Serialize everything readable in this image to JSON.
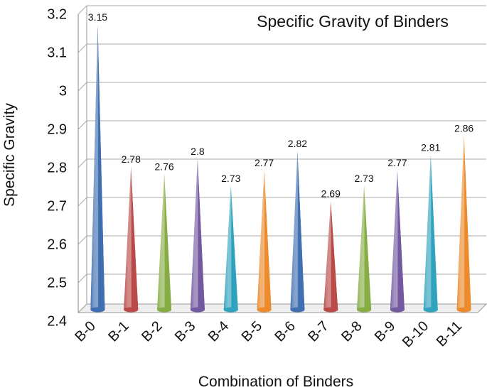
{
  "chart_data": {
    "type": "bar",
    "title": "Specific Gravity of Binders",
    "xlabel": "Combination of Binders",
    "ylabel": "Specific Gravity",
    "categories": [
      "B-0",
      "B-1",
      "B-2",
      "B-3",
      "B-4",
      "B-5",
      "B-6",
      "B-7",
      "B-8",
      "B-9",
      "B-10",
      "B-11"
    ],
    "values": [
      3.15,
      2.78,
      2.76,
      2.8,
      2.73,
      2.77,
      2.82,
      2.69,
      2.73,
      2.77,
      2.81,
      2.86
    ],
    "value_labels": [
      "3.15",
      "2.78",
      "2.76",
      "2.8",
      "2.73",
      "2.77",
      "2.82",
      "2.69",
      "2.73",
      "2.77",
      "2.81",
      "2.86"
    ],
    "ylim": [
      2.4,
      3.2
    ],
    "yticks": [
      2.4,
      2.5,
      2.6,
      2.7,
      2.8,
      2.9,
      3,
      3.1,
      3.2
    ],
    "ytick_labels": [
      "2.4",
      "2.5",
      "2.6",
      "2.7",
      "2.8",
      "2.9",
      "3",
      "3.1",
      "3.2"
    ],
    "grid": true,
    "bar_shape": "3d-cone",
    "colors": [
      "#3f6fb0",
      "#b94a48",
      "#86ad44",
      "#7359a0",
      "#2fa3bd",
      "#ec8a2c",
      "#3f6fb0",
      "#b94a48",
      "#86ad44",
      "#7359a0",
      "#2fa3bd",
      "#ec8a2c"
    ]
  }
}
